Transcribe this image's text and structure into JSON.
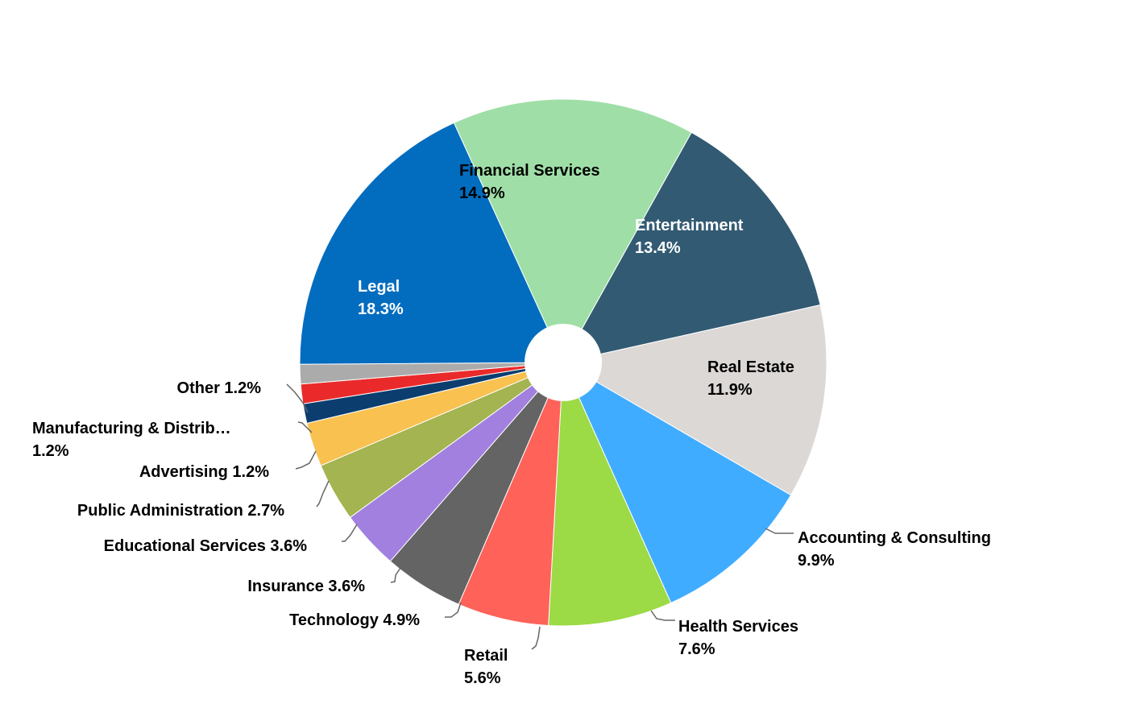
{
  "chart_data": {
    "type": "pie",
    "style": "donut",
    "title": "",
    "slices": [
      {
        "name": "Financial Services",
        "display_name": "Financial Services",
        "value": 14.9,
        "label": "14.9%",
        "color": "#9FDFA7",
        "label_color": "#000000",
        "label_style": "inside"
      },
      {
        "name": "Entertainment",
        "display_name": "Entertainment",
        "value": 13.4,
        "label": "13.4%",
        "color": "#325A73",
        "label_color": "#ffffff",
        "label_style": "inside"
      },
      {
        "name": "Real Estate",
        "display_name": "Real Estate",
        "value": 11.9,
        "label": "11.9%",
        "color": "#DCD8D6",
        "label_color": "#000000",
        "label_style": "inside"
      },
      {
        "name": "Accounting & Consulting",
        "display_name": "Accounting & Consulting",
        "value": 9.9,
        "label": "9.9%",
        "color": "#40ACFF",
        "label_color": "#000000",
        "label_style": "outside-block"
      },
      {
        "name": "Health Services",
        "display_name": "Health Services",
        "value": 7.6,
        "label": "7.6%",
        "color": "#9CDA46",
        "label_color": "#000000",
        "label_style": "outside-block"
      },
      {
        "name": "Retail",
        "display_name": "Retail",
        "value": 5.6,
        "label": "5.6%",
        "color": "#FF6259",
        "label_color": "#000000",
        "label_style": "outside-block"
      },
      {
        "name": "Technology",
        "display_name": "Technology",
        "value": 4.9,
        "label": "4.9%",
        "color": "#646464",
        "label_color": "#000000",
        "label_style": "outside-inline"
      },
      {
        "name": "Insurance",
        "display_name": "Insurance",
        "value": 3.6,
        "label": "3.6%",
        "color": "#A280DF",
        "label_color": "#000000",
        "label_style": "outside-inline"
      },
      {
        "name": "Educational Services",
        "display_name": "Educational Services",
        "value": 3.6,
        "label": "3.6%",
        "color": "#A3B451",
        "label_color": "#000000",
        "label_style": "outside-inline"
      },
      {
        "name": "Public Administration",
        "display_name": "Public Administration",
        "value": 2.7,
        "label": "2.7%",
        "color": "#F8C150",
        "label_color": "#000000",
        "label_style": "outside-inline"
      },
      {
        "name": "Advertising",
        "display_name": "Advertising",
        "value": 1.2,
        "label": "1.2%",
        "color": "#0B3E6F",
        "label_color": "#000000",
        "label_style": "outside-inline"
      },
      {
        "name": "Manufacturing & Distribution",
        "display_name": "Manufacturing & Distrib…",
        "value": 1.2,
        "label": "1.2%",
        "color": "#EA2A2A",
        "label_color": "#000000",
        "label_style": "outside-block"
      },
      {
        "name": "Other",
        "display_name": "Other",
        "value": 1.2,
        "label": "1.2%",
        "color": "#ABABAB",
        "label_color": "#000000",
        "label_style": "outside-inline"
      },
      {
        "name": "Legal",
        "display_name": "Legal",
        "value": 18.3,
        "label": "18.3%",
        "color": "#026CBF",
        "label_color": "#ffffff",
        "label_style": "inside"
      }
    ]
  }
}
